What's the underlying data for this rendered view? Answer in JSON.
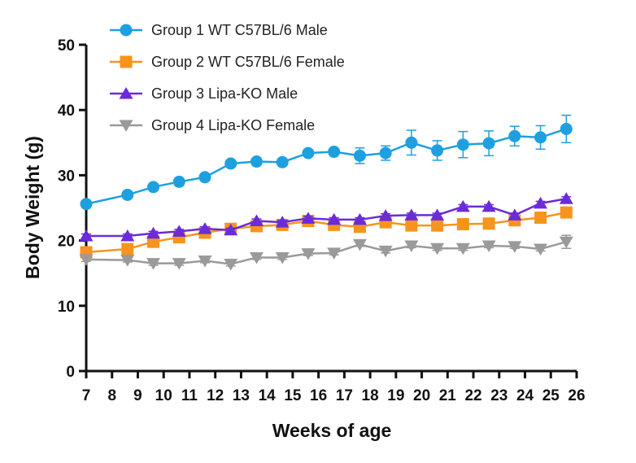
{
  "chart_data": {
    "type": "line",
    "title": "",
    "xlabel": "Weeks of age",
    "ylabel": "Body Weight (g)",
    "xlim": [
      7,
      26
    ],
    "ylim": [
      0,
      50
    ],
    "xticks": [
      7,
      8,
      9,
      10,
      11,
      12,
      13,
      14,
      15,
      16,
      17,
      18,
      19,
      20,
      21,
      22,
      23,
      24,
      25,
      26
    ],
    "yticks": [
      0,
      10,
      20,
      30,
      40,
      50
    ],
    "legend_position": "top-left",
    "grid": false,
    "x": [
      7,
      8.6,
      9.6,
      10.6,
      11.6,
      12.6,
      13.6,
      14.6,
      15.6,
      16.6,
      17.6,
      18.6,
      19.6,
      20.6,
      21.6,
      22.6,
      23.6,
      24.6,
      25.6
    ],
    "series": [
      {
        "name": "Group 1 WT C57BL/6 Male",
        "color": "#1ea0e0",
        "marker": "circle",
        "values": [
          25.6,
          27.0,
          28.2,
          29.0,
          29.7,
          31.8,
          32.1,
          32.0,
          33.4,
          33.6,
          33.0,
          33.4,
          35.0,
          33.8,
          34.7,
          34.9,
          36.0,
          35.8,
          37.1
        ],
        "errors": [
          0.3,
          0.4,
          0.4,
          0.4,
          0.5,
          0.5,
          0.5,
          0.5,
          0.5,
          0.5,
          1.2,
          1.1,
          1.9,
          1.5,
          2.0,
          1.9,
          1.5,
          1.8,
          2.1
        ]
      },
      {
        "name": "Group 2 WT C57BL/6 Female",
        "color": "#f7941d",
        "marker": "square",
        "values": [
          18.2,
          18.7,
          19.8,
          20.5,
          21.2,
          21.8,
          22.2,
          22.4,
          23.0,
          22.4,
          22.1,
          22.8,
          22.3,
          22.3,
          22.5,
          22.6,
          23.1,
          23.5,
          24.3
        ],
        "errors": [
          0.3,
          0.3,
          0.3,
          0.3,
          0.3,
          0.3,
          0.3,
          0.3,
          0.3,
          0.3,
          0.3,
          0.3,
          0.3,
          0.3,
          0.3,
          0.3,
          0.3,
          0.4,
          0.5
        ]
      },
      {
        "name": "Group 3 Lipa-KO Male",
        "color": "#6a2bd9",
        "marker": "triangle-up",
        "values": [
          20.7,
          20.7,
          21.1,
          21.4,
          21.8,
          21.6,
          23.0,
          22.8,
          23.4,
          23.2,
          23.2,
          23.8,
          23.9,
          23.9,
          25.2,
          25.2,
          23.9,
          25.7,
          26.4
        ],
        "errors": [
          0.3,
          0.3,
          0.3,
          0.3,
          0.3,
          0.3,
          0.3,
          0.3,
          0.3,
          0.3,
          0.3,
          0.3,
          0.3,
          0.3,
          0.3,
          0.3,
          0.3,
          0.3,
          0.3
        ]
      },
      {
        "name": "Group 4 Lipa-KO Female",
        "color": "#9a9a9a",
        "marker": "triangle-down",
        "values": [
          17.1,
          17.0,
          16.5,
          16.5,
          16.9,
          16.4,
          17.4,
          17.4,
          18.0,
          18.1,
          19.4,
          18.4,
          19.2,
          18.8,
          18.8,
          19.2,
          19.1,
          18.7,
          19.8
        ],
        "errors": [
          0.3,
          0.3,
          0.3,
          0.3,
          0.3,
          0.3,
          0.3,
          0.3,
          0.3,
          0.3,
          0.3,
          0.3,
          0.3,
          0.3,
          0.3,
          0.3,
          0.3,
          0.3,
          1.0
        ]
      }
    ]
  }
}
